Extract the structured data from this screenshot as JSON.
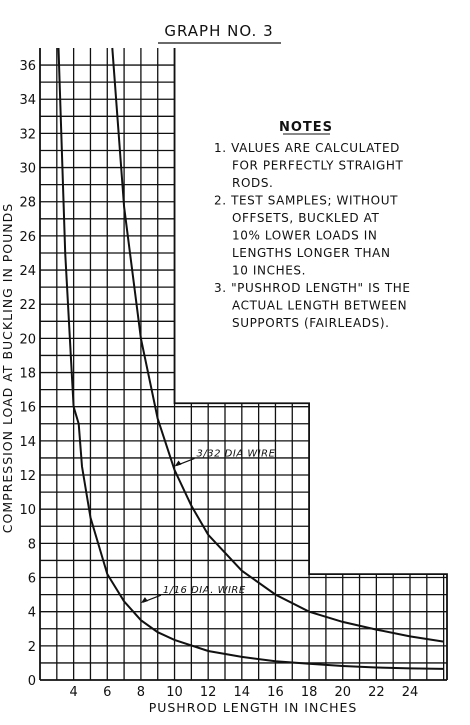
{
  "chart_data": {
    "type": "line",
    "title": "GRAPH NO. 3",
    "xlabel": "PUSHROD LENGTH IN INCHES",
    "ylabel": "COMPRESSION LOAD AT BUCKLING IN POUNDS",
    "xlim": [
      2,
      26.2
    ],
    "ylim": [
      0,
      37
    ],
    "x_ticks": [
      4,
      6,
      8,
      10,
      12,
      14,
      16,
      18,
      20,
      22,
      24
    ],
    "y_ticks": [
      0,
      2,
      4,
      6,
      8,
      10,
      12,
      14,
      16,
      18,
      20,
      22,
      24,
      26,
      28,
      30,
      32,
      34,
      36
    ],
    "grid": true,
    "series": [
      {
        "name": "3/32 DIA WIRE",
        "x": [
          6.3,
          7,
          8,
          9,
          10,
          11,
          12,
          14,
          16,
          18,
          20,
          22,
          24,
          26
        ],
        "y": [
          37,
          27.7,
          20,
          15.3,
          12.3,
          10.2,
          8.5,
          6.4,
          5,
          4,
          3.4,
          2.95,
          2.55,
          2.25
        ]
      },
      {
        "name": "1/16 DIA. WIRE",
        "x": [
          3.1,
          3.5,
          4,
          4.3,
          4.5,
          5,
          6,
          7,
          8,
          9,
          10,
          12,
          14,
          16,
          18,
          20,
          22,
          24,
          26
        ],
        "y": [
          37,
          25,
          16,
          15,
          12.5,
          9.5,
          6.2,
          4.6,
          3.5,
          2.8,
          2.35,
          1.7,
          1.35,
          1.1,
          0.95,
          0.82,
          0.73,
          0.68,
          0.65
        ]
      }
    ],
    "annotations": [
      {
        "text": "3/32 DIA WIRE",
        "x": 10,
        "y": 12.5
      },
      {
        "text": "1/16 DIA. WIRE",
        "x": 8,
        "y": 4.5
      }
    ],
    "notes": {
      "heading": "NOTES",
      "lines": [
        "1. VALUES ARE CALCULATED",
        "FOR PERFECTLY STRAIGHT",
        "RODS.",
        "2. TEST SAMPLES; WITHOUT",
        "OFFSETS, BUCKLED AT",
        "10% LOWER LOADS IN",
        "LENGTHS LONGER THAN",
        "10 INCHES.",
        "3. \"PUSHROD LENGTH\" IS THE",
        "ACTUAL LENGTH BETWEEN",
        "SUPPORTS (FAIRLEADS)."
      ]
    }
  }
}
